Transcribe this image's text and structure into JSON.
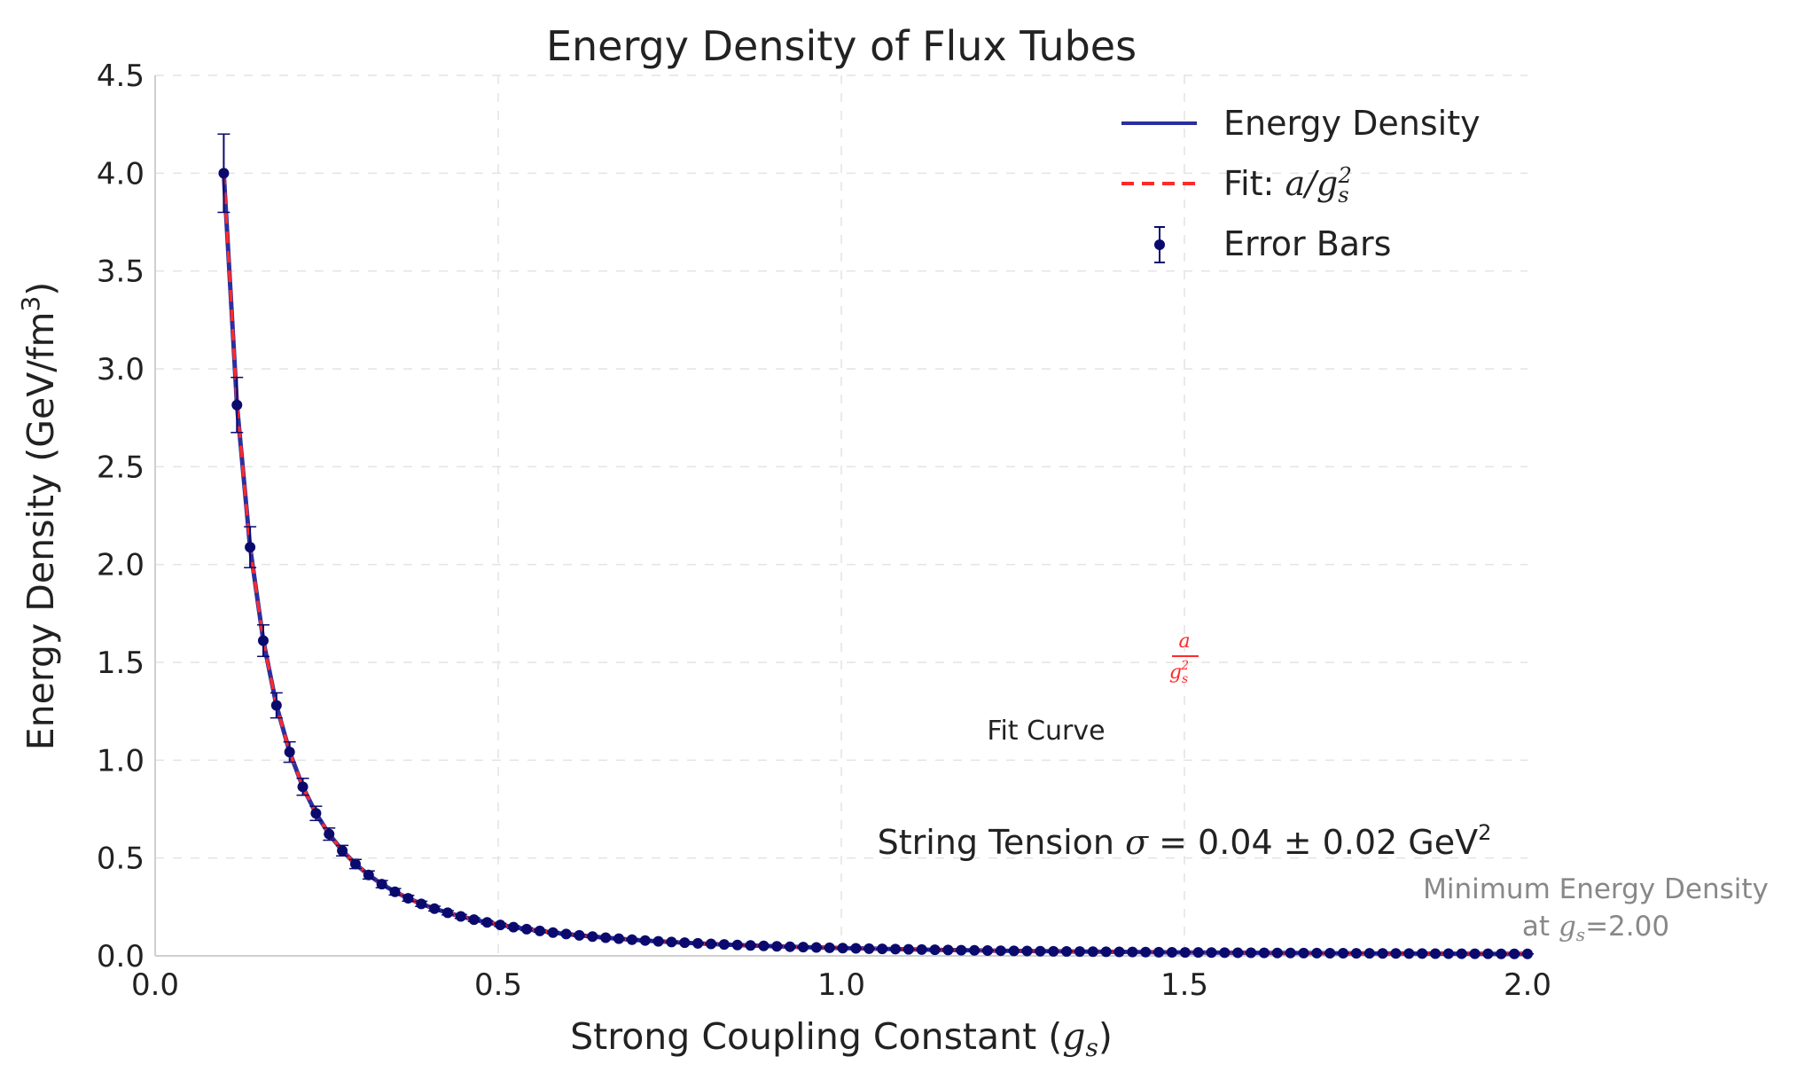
{
  "chart_data": {
    "type": "line",
    "title": "Energy Density of Flux Tubes",
    "xlabel": "Strong Coupling Constant (",
    "xlabel_math": "g",
    "xlabel_sub": "s",
    "xlabel_end": ")",
    "ylabel": "Energy Density (GeV/fm",
    "ylabel_sup": "3",
    "ylabel_end": ")",
    "xlim": [
      0,
      2.0
    ],
    "ylim": [
      0,
      4.5
    ],
    "xticks": [
      "0.0",
      "0.5",
      "1.0",
      "1.5",
      "2.0"
    ],
    "xtick_values": [
      0,
      0.5,
      1.0,
      1.5,
      2.0
    ],
    "yticks": [
      "0.0",
      "0.5",
      "1.0",
      "1.5",
      "2.0",
      "2.5",
      "3.0",
      "3.5",
      "4.0",
      "4.5"
    ],
    "ytick_values": [
      0,
      0.5,
      1.0,
      1.5,
      2.0,
      2.5,
      3.0,
      3.5,
      4.0,
      4.5
    ],
    "grid": true,
    "model": {
      "formula": "a / g_s^2",
      "a": 0.04,
      "x_start": 0.1,
      "x_end": 2.0,
      "n_points": 100,
      "relative_error": 0.05
    },
    "series": [
      {
        "name": "Energy Density",
        "style": "solid line",
        "color": "#2b2f9e"
      },
      {
        "name": "Fit: ",
        "name_math": "a/g",
        "name_sub": "s",
        "name_sup": "2",
        "style": "dashed line",
        "color": "#ff2a2a"
      },
      {
        "name": "Error Bars",
        "style": "points with error bars",
        "color": "#0a0a6e"
      }
    ],
    "legend_placement": "top-right",
    "annotations": {
      "fraction": {
        "numerator": "a",
        "denominator": "g",
        "sub": "s",
        "sup": "2",
        "x": 1.5,
        "y": 1.5,
        "color": "#ff2a2a"
      },
      "fit_curve": {
        "text": "Fit Curve",
        "x": 1.3,
        "y": 1.13
      },
      "string_tension": {
        "text_before": "String Tension ",
        "sigma": "σ",
        "text_after": " = 0.04 ± 0.02 GeV",
        "sup": "2",
        "x": 1.5,
        "y": 0.55
      },
      "minimum": {
        "line1": "Minimum Energy Density",
        "line2_before": "at ",
        "line2_math": "g",
        "line2_sub": "s",
        "line2_after": "=2.00",
        "x": 2.1,
        "y": 0.25,
        "color": "#888888"
      }
    }
  }
}
